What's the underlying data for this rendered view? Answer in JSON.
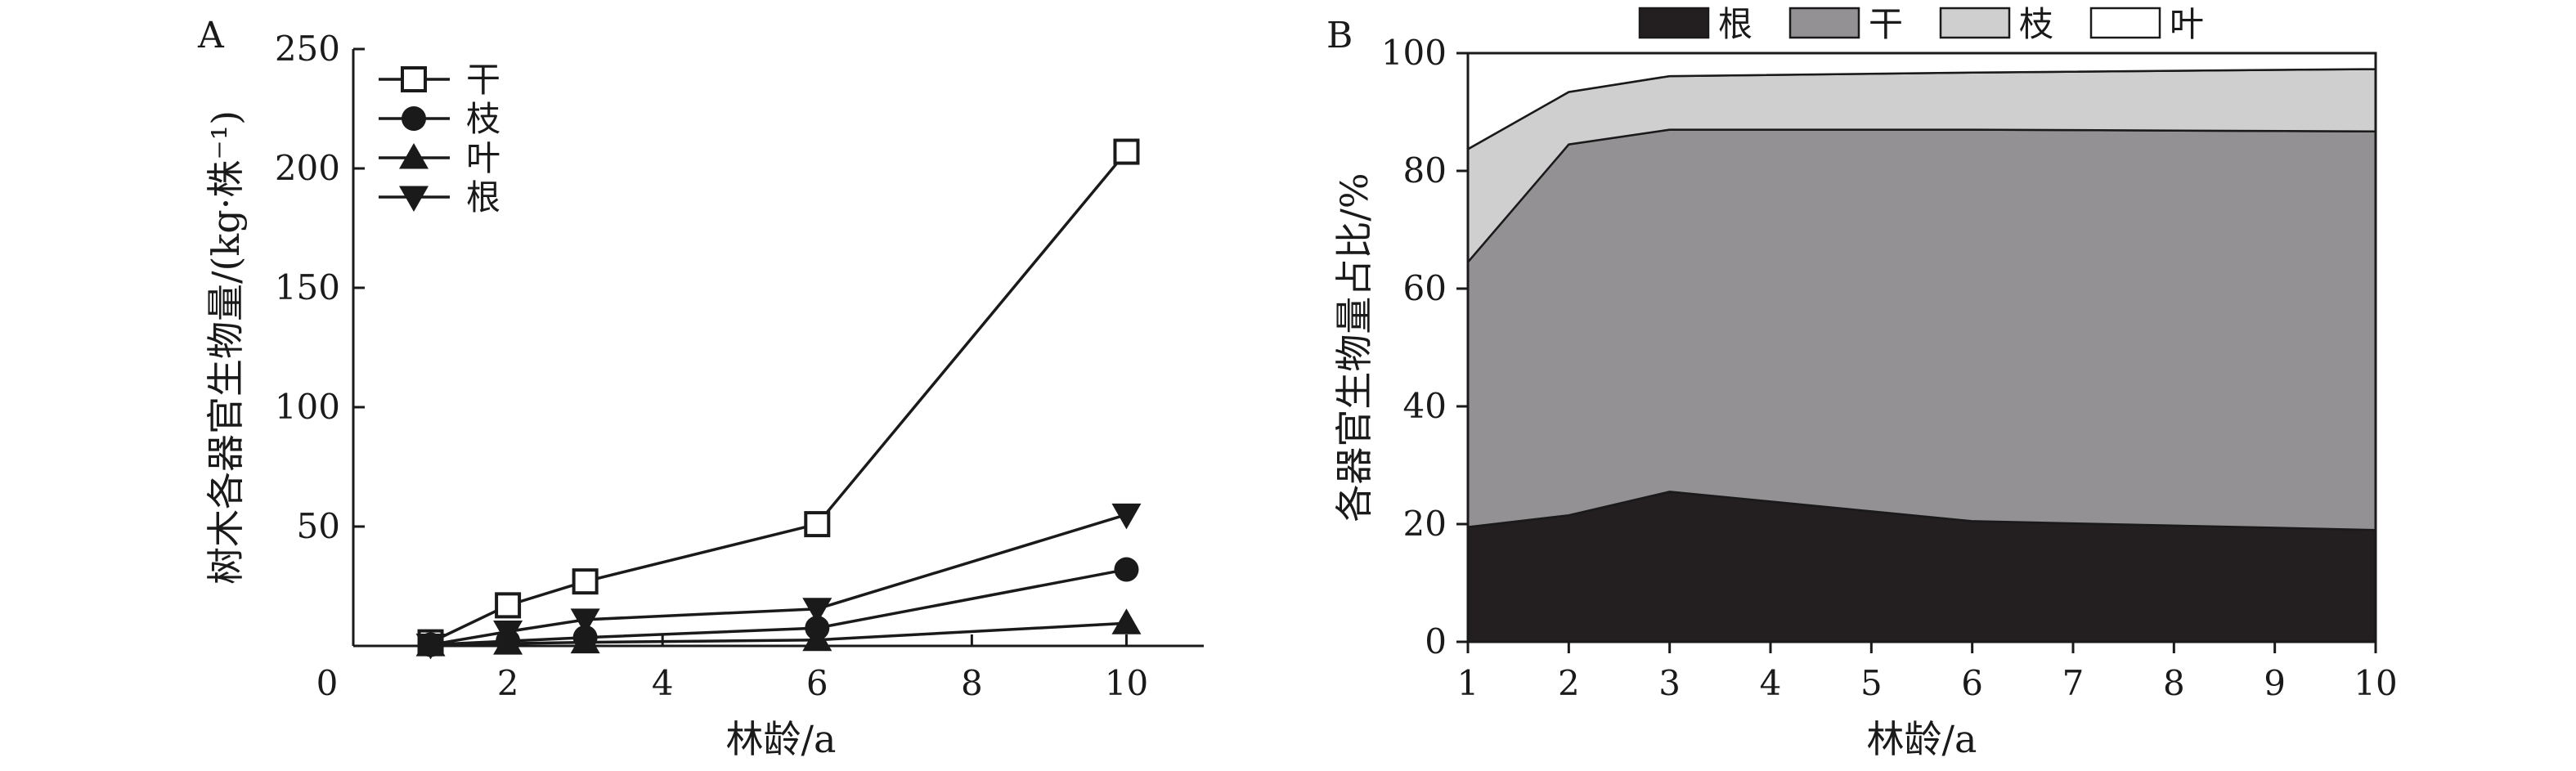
{
  "chart_data": [
    {
      "panel": "A",
      "type": "line",
      "xlabel": "林龄/a",
      "ylabel": "树木各器官生物量/(kg·株⁻¹)",
      "xlim": [
        0,
        11
      ],
      "ylim": [
        0,
        250
      ],
      "xticks": [
        0,
        2,
        4,
        6,
        8,
        10
      ],
      "yticks": [
        50,
        100,
        150,
        200,
        250
      ],
      "origin_label": "0",
      "legend": "top-left",
      "grid": false,
      "x": [
        1,
        2,
        3,
        6,
        10
      ],
      "series": [
        {
          "name": "干",
          "marker": "square-open",
          "values": [
            1.5,
            17,
            27,
            51,
            207
          ]
        },
        {
          "name": "枝",
          "marker": "circle-filled",
          "values": [
            0.5,
            2,
            3.5,
            7.5,
            32
          ]
        },
        {
          "name": "叶",
          "marker": "triangle-up-filled",
          "values": [
            0.3,
            1,
            1.5,
            2.5,
            9.5
          ]
        },
        {
          "name": "根",
          "marker": "triangle-down-filled",
          "values": [
            0.5,
            6,
            11,
            15.5,
            55
          ]
        }
      ]
    },
    {
      "panel": "B",
      "type": "area",
      "stacked": true,
      "xlabel": "林龄/a",
      "ylabel": "各器官生物量占比/%",
      "xlim": [
        1,
        10
      ],
      "ylim": [
        0,
        100
      ],
      "xticks": [
        1,
        2,
        3,
        4,
        5,
        6,
        7,
        8,
        9,
        10
      ],
      "yticks": [
        0,
        20,
        40,
        60,
        80,
        100
      ],
      "legend": "top",
      "grid": false,
      "x": [
        1,
        2,
        3,
        6,
        10
      ],
      "series": [
        {
          "name": "根",
          "color": "#231f20",
          "values": [
            19.5,
            21.5,
            25.5,
            20.5,
            19
          ]
        },
        {
          "name": "干",
          "color": "#939193",
          "values": [
            45,
            63,
            61.5,
            66.5,
            67.7
          ]
        },
        {
          "name": "枝",
          "color": "#cfcfcf",
          "values": [
            19.2,
            8.9,
            9.1,
            9.7,
            10.6
          ]
        },
        {
          "name": "叶",
          "color": "#ffffff",
          "values": [
            16.3,
            6.6,
            3.9,
            3.3,
            2.7
          ]
        }
      ]
    }
  ]
}
